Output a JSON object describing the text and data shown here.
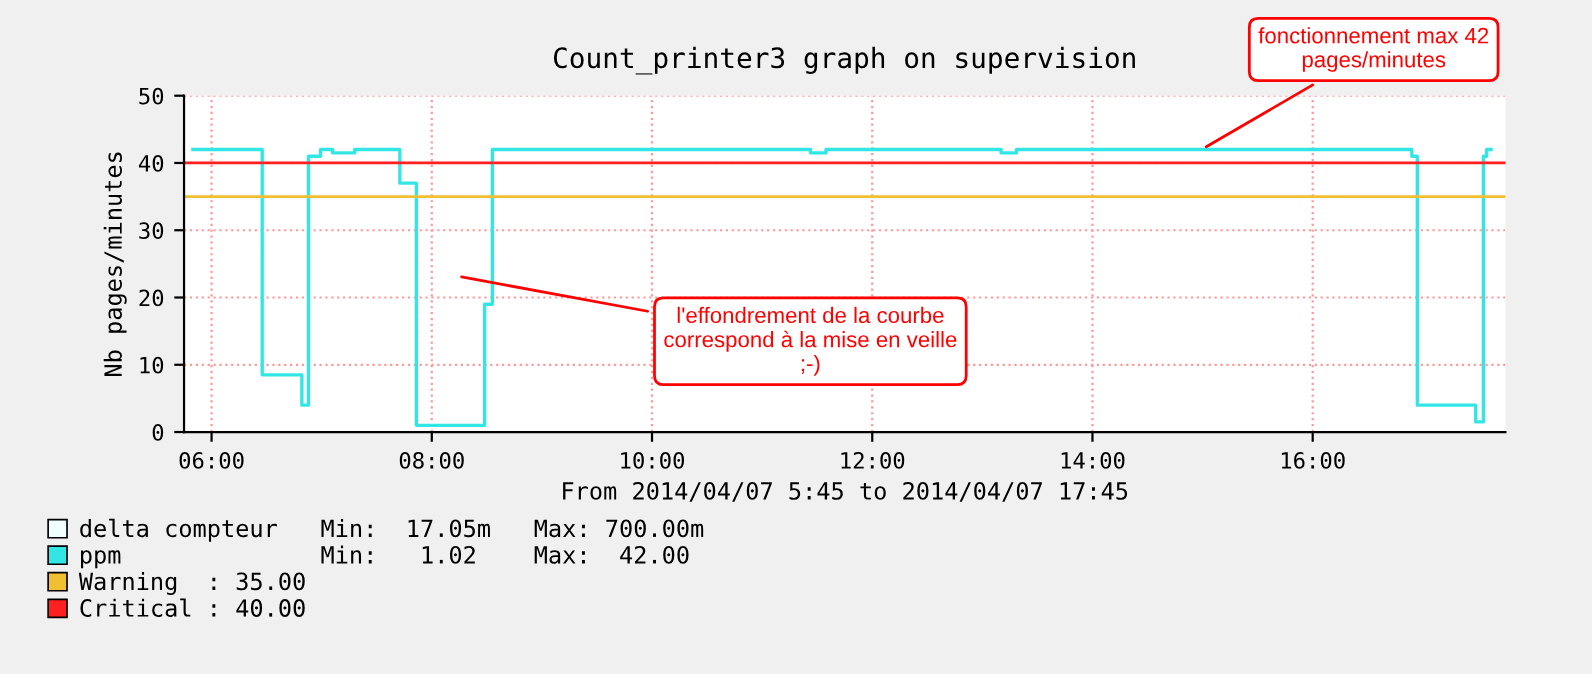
{
  "chart_data": {
    "type": "step",
    "title": "Count_printer3 graph on supervision",
    "xlabel": "From 2014/04/07 5:45 to 2014/04/07 17:45",
    "ylabel": "Nb pages/minutes",
    "xlim": [
      5.75,
      17.75
    ],
    "xticks": [
      {
        "value": 6,
        "label": "06:00"
      },
      {
        "value": 8,
        "label": "08:00"
      },
      {
        "value": 10,
        "label": "10:00"
      },
      {
        "value": 12,
        "label": "12:00"
      },
      {
        "value": 14,
        "label": "14:00"
      },
      {
        "value": 16,
        "label": "16:00"
      }
    ],
    "ylim": [
      0,
      50
    ],
    "yticks": [
      0,
      10,
      20,
      30,
      40,
      50
    ],
    "grid": true,
    "legend": "bottom",
    "series": [
      {
        "name": "delta compteur   Min:  17.05m   Max: 700.00m",
        "color": "#f0ffff"
      },
      {
        "name": "ppm              Min:   1.02    Max:  42.00",
        "color": "#33e6e6",
        "x": [
          5.83,
          6.46,
          6.82,
          6.88,
          6.99,
          7.1,
          7.2,
          7.3,
          7.71,
          7.86,
          8.48,
          8.55,
          8.9,
          11.44,
          11.58,
          13.17,
          13.31,
          16.9,
          16.95,
          17.48,
          17.55,
          17.58,
          17.62
        ],
        "values": [
          42,
          8.5,
          4,
          41,
          42,
          41.5,
          41.5,
          42,
          37,
          1,
          19,
          42,
          42,
          41.5,
          42,
          41.5,
          42,
          41,
          4,
          1.5,
          41,
          42,
          42
        ]
      }
    ],
    "ref_lines": [
      {
        "axis": "y",
        "value": 35,
        "label": "Warning  : 35.00",
        "color": "#f0c030"
      },
      {
        "axis": "y",
        "value": 40,
        "label": "Critical : 40.00",
        "color": "#ff2020"
      }
    ],
    "annotations": [
      {
        "text": "fonctionnement max 42\npages/minutes",
        "x": 14.99,
        "y": 42
      },
      "l'effondrement de la courbe\ncorrespond à la mise en veille\n;-)"
    ]
  }
}
